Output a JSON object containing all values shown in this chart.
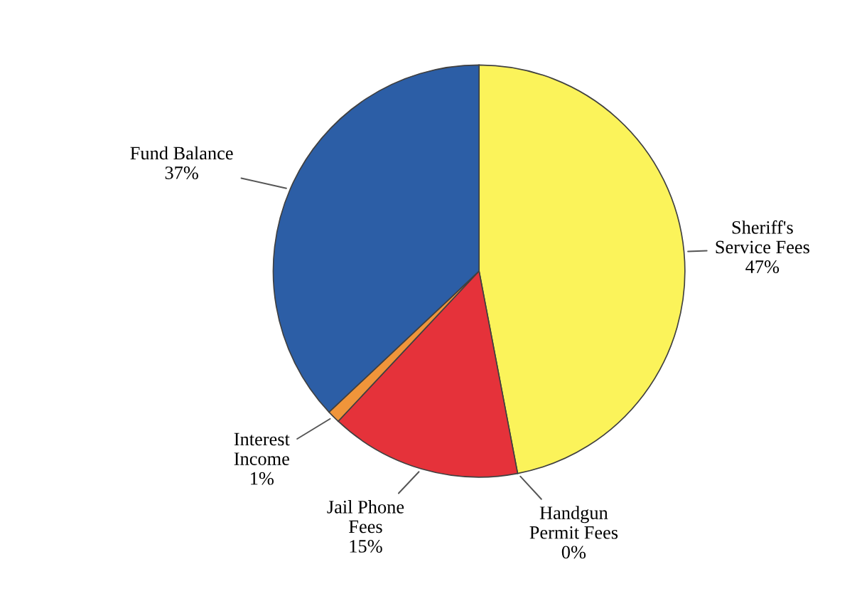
{
  "chart_data": {
    "type": "pie",
    "categories": [
      "Sheriff's\nService Fees",
      "Handgun\nPermit Fees",
      "Jail Phone\nFees",
      "Interest\nIncome",
      "Fund Balance"
    ],
    "values": [
      47,
      0,
      15,
      1,
      37
    ],
    "value_labels": [
      "47%",
      "0%",
      "15%",
      "1%",
      "37%"
    ],
    "colors": [
      "#fbf35a",
      "#8a8040",
      "#e5323a",
      "#f0953a",
      "#2c5ea6"
    ]
  }
}
